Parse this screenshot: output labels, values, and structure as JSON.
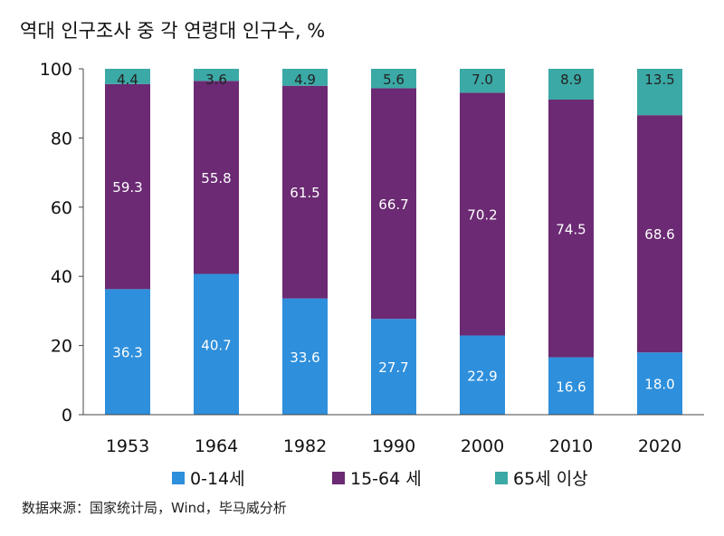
{
  "title": "역대 인구조사 중 각 연령대 인구수, %",
  "source": "数据来源：国家统计局，Wind，毕马威分析",
  "colors": {
    "age_0_14": "#2E8FDC",
    "age_15_64": "#6B2A73",
    "age_65_plus": "#3BA9A5",
    "axis": "#444444",
    "label_light": "#ffffff",
    "label_dark": "#222222"
  },
  "chart_data": {
    "type": "bar",
    "stacked": true,
    "categories": [
      "1953",
      "1964",
      "1982",
      "1990",
      "2000",
      "2010",
      "2020"
    ],
    "series": [
      {
        "name": "0-14세",
        "values": [
          36.3,
          40.7,
          33.6,
          27.7,
          22.9,
          16.6,
          18.0
        ],
        "labels": [
          "36.3",
          "40.7",
          "33.6",
          "27.7",
          "22.9",
          "16.6",
          "18.0"
        ]
      },
      {
        "name": "15-64 세",
        "values": [
          59.3,
          55.8,
          61.5,
          66.7,
          70.2,
          74.5,
          68.6
        ],
        "labels": [
          "59.3",
          "55.8",
          "61.5",
          "66.7",
          "70.2",
          "74.5",
          "68.6"
        ]
      },
      {
        "name": "65세 이상",
        "values": [
          4.4,
          3.6,
          4.9,
          5.6,
          7.0,
          8.9,
          13.5
        ],
        "labels": [
          "4.4",
          "3.6",
          "4.9",
          "5.6",
          "7.0",
          "8.9",
          "13.5"
        ]
      }
    ],
    "ylim": [
      0,
      100
    ],
    "yticks": [
      "0",
      "20",
      "40",
      "60",
      "80",
      "100"
    ],
    "grid": false,
    "legend": "bottom"
  }
}
